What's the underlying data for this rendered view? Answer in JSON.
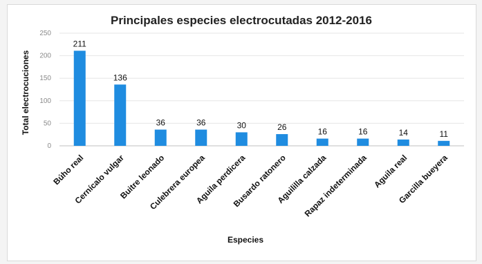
{
  "chart_data": {
    "type": "bar",
    "title": "Principales especies electrocutadas 2012-2016",
    "xlabel": "Especies",
    "ylabel": "Total electrocuciones",
    "categories": [
      "Búho real",
      "Cernícalo vulgar",
      "Buitre leonado",
      "Culebrera europea",
      "Aguila perdicera",
      "Busardo ratonero",
      "Aguililla calzada",
      "Rapaz indeterminada",
      "Aguila real",
      "Garcilla bueyera"
    ],
    "values": [
      211,
      136,
      36,
      36,
      30,
      26,
      16,
      16,
      14,
      11
    ],
    "yticks": [
      0,
      50,
      100,
      150,
      200,
      250
    ],
    "ylim": [
      0,
      250
    ],
    "grid": true,
    "legend": "none",
    "bar_color": "#1f8ce0"
  }
}
